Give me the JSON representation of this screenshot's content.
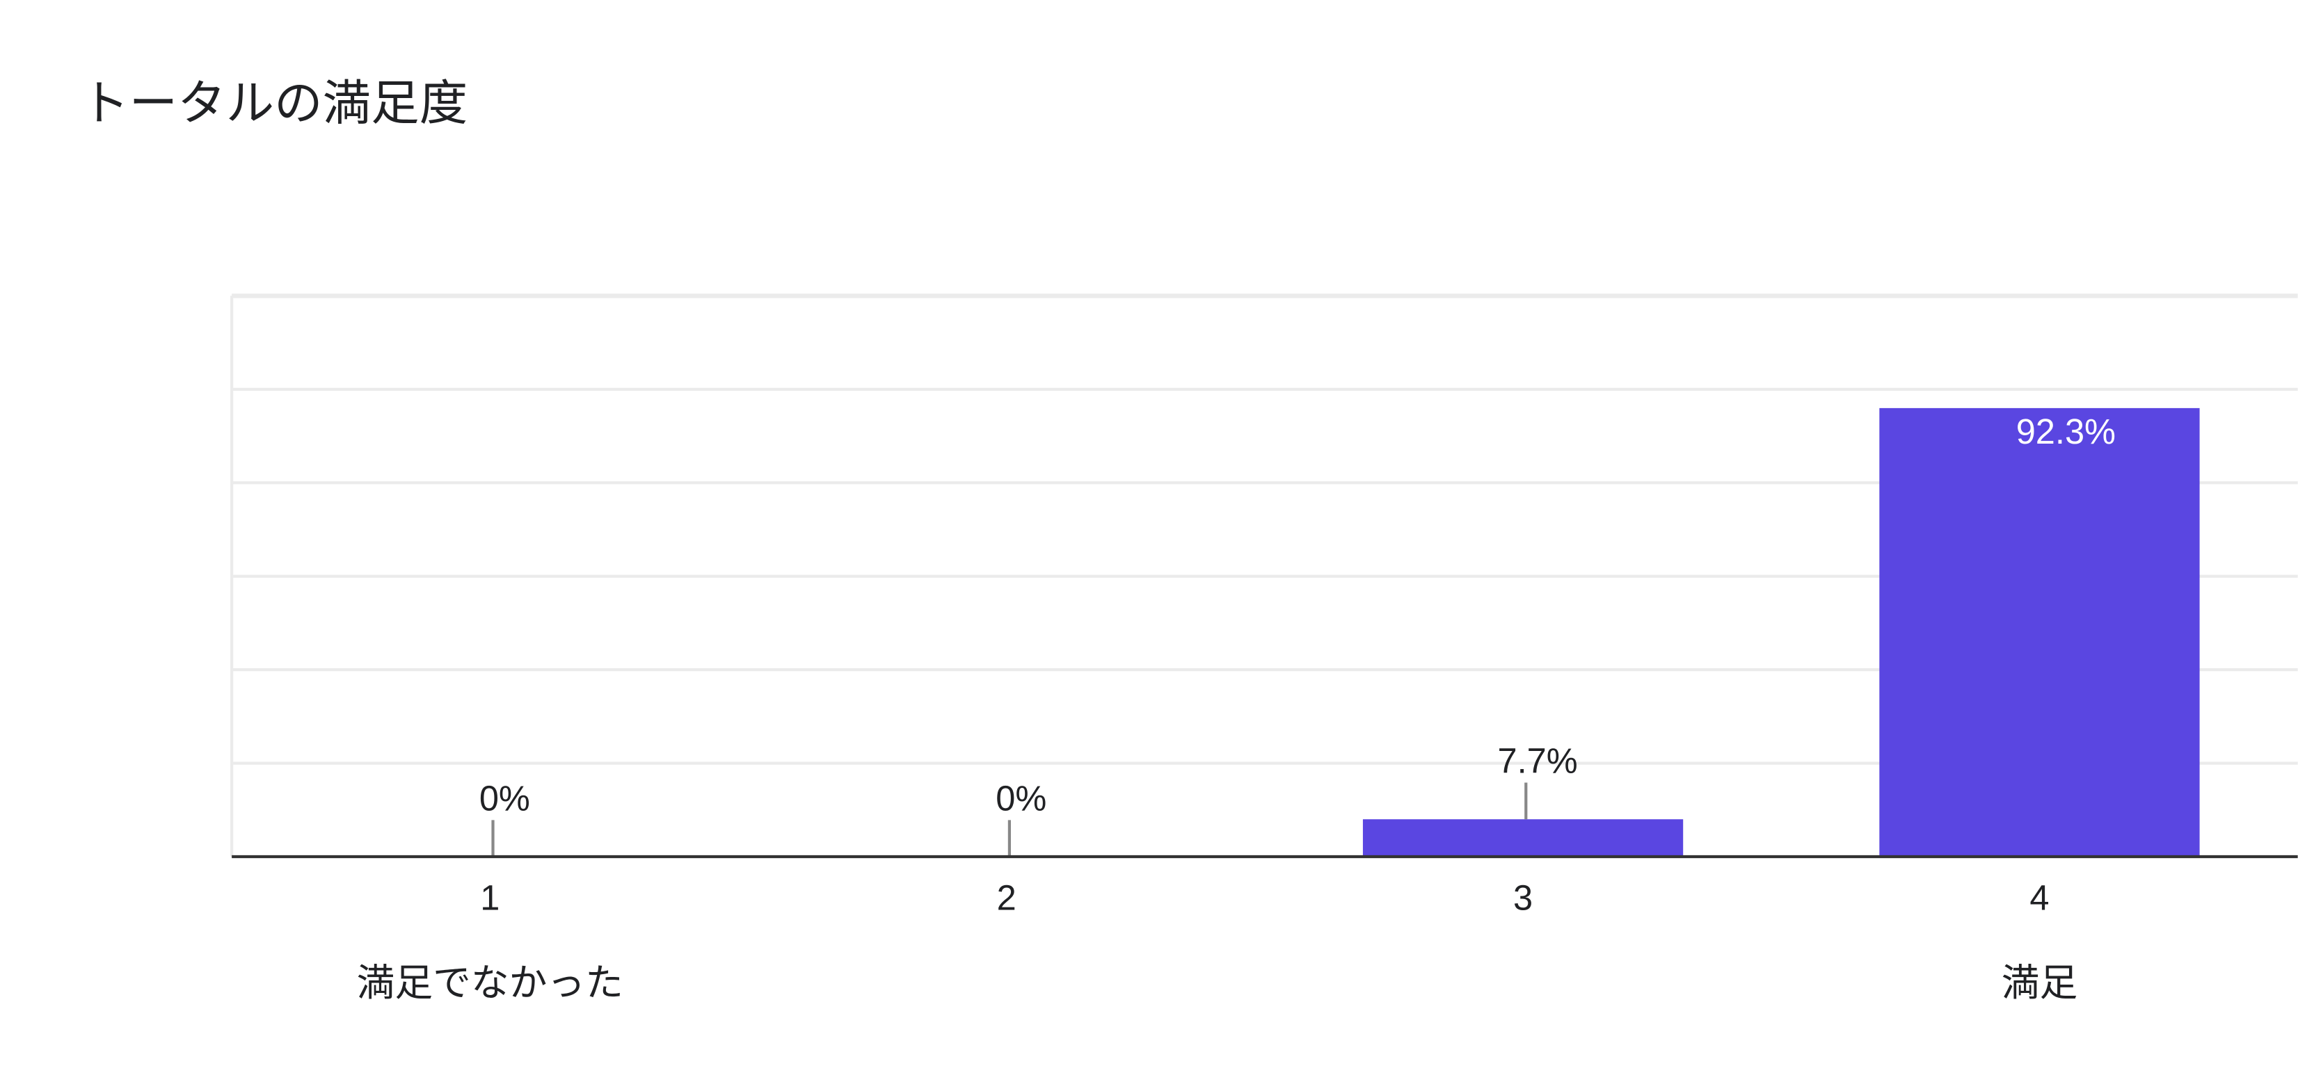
{
  "chart_data": {
    "type": "bar",
    "title": "トータルの満足度",
    "categories": [
      "1",
      "2",
      "3",
      "4"
    ],
    "scale_labels": [
      "満足でなかった",
      null,
      null,
      "満足"
    ],
    "values": [
      0,
      0,
      7.7,
      92.3
    ],
    "value_labels": [
      "0%",
      "0%",
      "7.7%",
      "92.3%"
    ],
    "color": "#5a46e1",
    "ylim": [
      0,
      115.4
    ],
    "grid": true
  }
}
